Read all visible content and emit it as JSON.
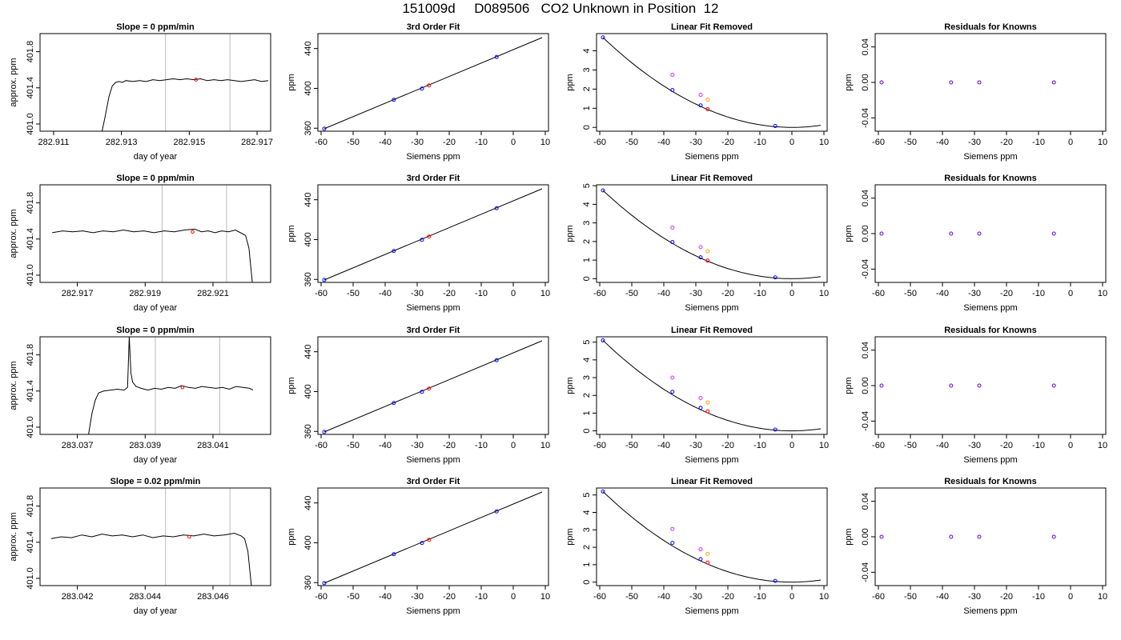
{
  "page": {
    "title": "151009d     D089506   CO2 Unknown in Position  12"
  },
  "chart_data": [
    {
      "type": "line",
      "title": "Slope =  0  ppm/min",
      "xlabel": "day of year",
      "ylabel": "approx. ppm",
      "xlim": [
        282.9106,
        282.9174
      ],
      "ylim": [
        400.92,
        402.0
      ],
      "xticks": [
        "282.911",
        "282.913",
        "282.915",
        "282.917"
      ],
      "yticks": [
        "401.0",
        "401.4",
        "401.8"
      ],
      "vlines": [
        282.9143,
        282.9162
      ],
      "x": [
        282.91243,
        282.91253,
        282.91263,
        282.91273,
        282.91283,
        282.91293,
        282.91303,
        282.91313,
        282.91333,
        282.91353,
        282.91373,
        282.91393,
        282.91413,
        282.91433,
        282.91453,
        282.91473,
        282.91493,
        282.91513,
        282.91533,
        282.91553,
        282.91573,
        282.91593,
        282.91613,
        282.91633,
        282.91653,
        282.91673,
        282.91693,
        282.91713,
        282.91733
      ],
      "y": [
        400.92,
        401.1,
        401.3,
        401.42,
        401.46,
        401.47,
        401.46,
        401.48,
        401.47,
        401.48,
        401.47,
        401.49,
        401.48,
        401.49,
        401.5,
        401.49,
        401.5,
        401.49,
        401.5,
        401.48,
        401.49,
        401.48,
        401.49,
        401.48,
        401.47,
        401.48,
        401.49,
        401.47,
        401.48
      ],
      "marker": {
        "x": 282.9152,
        "y": 401.49,
        "color": "#ff0000"
      }
    },
    {
      "type": "scatter",
      "title": "3rd Order Fit",
      "xlabel": "Siemens ppm",
      "ylabel": "ppm",
      "xlim": [
        -61,
        11
      ],
      "ylim": [
        357,
        455
      ],
      "xticks": [
        -60,
        -50,
        -40,
        -30,
        -20,
        -10,
        0,
        10
      ],
      "yticks": [
        360,
        400,
        440
      ],
      "fit_line": [
        [
          -59,
          359.5
        ],
        [
          9,
          451
        ]
      ],
      "points": [
        {
          "x": -59,
          "y": 359.5,
          "color": "#0000ff"
        },
        {
          "x": -37.3,
          "y": 388.5,
          "color": "#0000ff"
        },
        {
          "x": -28.5,
          "y": 399.8,
          "color": "#0000ff"
        },
        {
          "x": -26.3,
          "y": 403.0,
          "color": "#ff0000"
        },
        {
          "x": -5.2,
          "y": 431.5,
          "color": "#0000ff"
        }
      ]
    },
    {
      "type": "scatter",
      "title": "Linear Fit Removed",
      "xlabel": "Siemens ppm",
      "ylabel": "ppm",
      "xlim": [
        -61,
        11
      ],
      "ylim": [
        -0.2,
        4.9
      ],
      "xticks": [
        -60,
        -50,
        -40,
        -30,
        -20,
        -10,
        0,
        10
      ],
      "yticks": [
        0,
        1,
        2,
        3,
        4
      ],
      "curve_amplitude": 4.7,
      "points": [
        {
          "x": -59,
          "y": 4.7,
          "color": "#0000ff"
        },
        {
          "x": -37.3,
          "y": 1.95,
          "color": "#0000ff"
        },
        {
          "x": -28.5,
          "y": 1.15,
          "color": "#0000ff"
        },
        {
          "x": -26.3,
          "y": 0.95,
          "color": "#ff0000"
        },
        {
          "x": -5.2,
          "y": 0.07,
          "color": "#0000ff"
        },
        {
          "x": -37.3,
          "y": 2.75,
          "color": "#cc33ff"
        },
        {
          "x": -28.5,
          "y": 1.7,
          "color": "#cc33ff"
        },
        {
          "x": -26.3,
          "y": 1.45,
          "color": "#ffa500"
        }
      ]
    },
    {
      "type": "scatter",
      "title": "Residuals for Knowns",
      "xlabel": "Siemens ppm",
      "ylabel": "ppm",
      "xlim": [
        -61,
        11
      ],
      "ylim": [
        -0.055,
        0.055
      ],
      "xticks": [
        -60,
        -50,
        -40,
        -30,
        -20,
        -10,
        0,
        10
      ],
      "yticks": [
        "-0.04",
        "0.00",
        "0.04"
      ],
      "points": [
        {
          "x": -59,
          "y": 0,
          "color": "#6600cc"
        },
        {
          "x": -37.3,
          "y": 0,
          "color": "#6600cc"
        },
        {
          "x": -28.5,
          "y": 0,
          "color": "#6600cc"
        },
        {
          "x": -5.2,
          "y": 0,
          "color": "#6600cc"
        }
      ]
    },
    {
      "type": "line",
      "title": "Slope =  0  ppm/min",
      "xlabel": "day of year",
      "ylabel": "approx. ppm",
      "xlim": [
        282.9159,
        282.9227
      ],
      "ylim": [
        400.92,
        402.0
      ],
      "xticks": [
        "282.917",
        "282.919",
        "282.921"
      ],
      "yticks": [
        "401.0",
        "401.4",
        "401.8"
      ],
      "vlines": [
        282.9195,
        282.9214
      ],
      "x": [
        282.91626,
        282.91656,
        282.91686,
        282.91716,
        282.91746,
        282.91776,
        282.91806,
        282.91836,
        282.91866,
        282.91896,
        282.91926,
        282.91956,
        282.91986,
        282.92016,
        282.92046,
        282.92066,
        282.92086,
        282.92106,
        282.92126,
        282.92146,
        282.92166,
        282.92186,
        282.92196,
        282.92206,
        282.92216
      ],
      "y": [
        401.47,
        401.49,
        401.48,
        401.49,
        401.47,
        401.49,
        401.48,
        401.5,
        401.48,
        401.49,
        401.47,
        401.49,
        401.48,
        401.5,
        401.51,
        401.48,
        401.49,
        401.47,
        401.49,
        401.48,
        401.5,
        401.46,
        401.44,
        401.3,
        400.92
      ],
      "marker": {
        "x": 282.9204,
        "y": 401.48,
        "color": "#ff0000"
      }
    },
    {
      "type": "scatter",
      "title": "3rd Order Fit",
      "xlabel": "Siemens ppm",
      "ylabel": "ppm",
      "xlim": [
        -61,
        11
      ],
      "ylim": [
        357,
        455
      ],
      "xticks": [
        -60,
        -50,
        -40,
        -30,
        -20,
        -10,
        0,
        10
      ],
      "yticks": [
        360,
        400,
        440
      ],
      "fit_line": [
        [
          -59,
          359.5
        ],
        [
          9,
          451
        ]
      ],
      "points": [
        {
          "x": -59,
          "y": 359.5,
          "color": "#0000ff"
        },
        {
          "x": -37.3,
          "y": 388.5,
          "color": "#0000ff"
        },
        {
          "x": -28.5,
          "y": 399.8,
          "color": "#0000ff"
        },
        {
          "x": -26.3,
          "y": 403.0,
          "color": "#ff0000"
        },
        {
          "x": -5.2,
          "y": 431.5,
          "color": "#0000ff"
        }
      ]
    },
    {
      "type": "scatter",
      "title": "Linear Fit Removed",
      "xlabel": "Siemens ppm",
      "ylabel": "ppm",
      "xlim": [
        -61,
        11
      ],
      "ylim": [
        -0.2,
        5.05
      ],
      "xticks": [
        -60,
        -50,
        -40,
        -30,
        -20,
        -10,
        0,
        10
      ],
      "yticks": [
        0,
        1,
        2,
        3,
        4,
        5
      ],
      "curve_amplitude": 4.75,
      "points": [
        {
          "x": -59,
          "y": 4.75,
          "color": "#0000ff"
        },
        {
          "x": -37.3,
          "y": 1.97,
          "color": "#0000ff"
        },
        {
          "x": -28.5,
          "y": 1.15,
          "color": "#0000ff"
        },
        {
          "x": -26.3,
          "y": 0.97,
          "color": "#ff0000"
        },
        {
          "x": -5.2,
          "y": 0.07,
          "color": "#0000ff"
        },
        {
          "x": -37.3,
          "y": 2.75,
          "color": "#cc33ff"
        },
        {
          "x": -28.5,
          "y": 1.7,
          "color": "#cc33ff"
        },
        {
          "x": -26.3,
          "y": 1.48,
          "color": "#ffa500"
        }
      ]
    },
    {
      "type": "scatter",
      "title": "Residuals for Knowns",
      "xlabel": "Siemens ppm",
      "ylabel": "ppm",
      "xlim": [
        -61,
        11
      ],
      "ylim": [
        -0.055,
        0.055
      ],
      "xticks": [
        -60,
        -50,
        -40,
        -30,
        -20,
        -10,
        0,
        10
      ],
      "yticks": [
        "-0.04",
        "0.00",
        "0.04"
      ],
      "points": [
        {
          "x": -59,
          "y": 0,
          "color": "#6600cc"
        },
        {
          "x": -37.3,
          "y": 0,
          "color": "#6600cc"
        },
        {
          "x": -28.5,
          "y": 0,
          "color": "#6600cc"
        },
        {
          "x": -5.2,
          "y": 0,
          "color": "#6600cc"
        }
      ]
    },
    {
      "type": "line",
      "title": "Slope =  0  ppm/min",
      "xlabel": "day of year",
      "ylabel": "approx. ppm",
      "xlim": [
        283.0359,
        283.0427
      ],
      "ylim": [
        400.92,
        402.0
      ],
      "xticks": [
        "283.037",
        "283.039",
        "283.041"
      ],
      "yticks": [
        "401.0",
        "401.4",
        "401.8"
      ],
      "vlines": [
        283.0393,
        283.0412
      ],
      "x": [
        283.03733,
        283.03743,
        283.03753,
        283.03763,
        283.03778,
        283.03798,
        283.03818,
        283.03838,
        283.03848,
        283.03853,
        283.03858,
        283.03863,
        283.03873,
        283.03888,
        283.03908,
        283.03928,
        283.03948,
        283.03968,
        283.03988,
        283.04008,
        283.04028,
        283.04048,
        283.04068,
        283.04088,
        283.04108,
        283.04128,
        283.04148,
        283.04168,
        283.04188,
        283.04208,
        283.04218
      ],
      "y": [
        400.92,
        401.15,
        401.3,
        401.38,
        401.4,
        401.41,
        401.42,
        401.41,
        401.44,
        402.0,
        401.6,
        401.5,
        401.45,
        401.43,
        401.41,
        401.43,
        401.42,
        401.44,
        401.43,
        401.46,
        401.44,
        401.43,
        401.45,
        401.44,
        401.43,
        401.44,
        401.42,
        401.45,
        401.44,
        401.43,
        401.41
      ],
      "marker": {
        "x": 283.0401,
        "y": 401.44,
        "color": "#ff0000"
      }
    },
    {
      "type": "scatter",
      "title": "3rd Order Fit",
      "xlabel": "Siemens ppm",
      "ylabel": "ppm",
      "xlim": [
        -61,
        11
      ],
      "ylim": [
        357,
        455
      ],
      "xticks": [
        -60,
        -50,
        -40,
        -30,
        -20,
        -10,
        0,
        10
      ],
      "yticks": [
        360,
        400,
        440
      ],
      "fit_line": [
        [
          -59,
          359.5
        ],
        [
          9,
          451
        ]
      ],
      "points": [
        {
          "x": -59,
          "y": 359.5,
          "color": "#0000ff"
        },
        {
          "x": -37.3,
          "y": 388.5,
          "color": "#0000ff"
        },
        {
          "x": -28.5,
          "y": 399.8,
          "color": "#0000ff"
        },
        {
          "x": -26.3,
          "y": 403.0,
          "color": "#ff0000"
        },
        {
          "x": -5.2,
          "y": 431.5,
          "color": "#0000ff"
        }
      ]
    },
    {
      "type": "scatter",
      "title": "Linear Fit Removed",
      "xlabel": "Siemens ppm",
      "ylabel": "ppm",
      "xlim": [
        -61,
        11
      ],
      "ylim": [
        -0.2,
        5.3
      ],
      "xticks": [
        -60,
        -50,
        -40,
        -30,
        -20,
        -10,
        0,
        10
      ],
      "yticks": [
        0,
        1,
        2,
        3,
        4,
        5
      ],
      "curve_amplitude": 5.1,
      "points": [
        {
          "x": -59,
          "y": 5.1,
          "color": "#0000ff"
        },
        {
          "x": -37.3,
          "y": 2.2,
          "color": "#0000ff"
        },
        {
          "x": -28.5,
          "y": 1.3,
          "color": "#0000ff"
        },
        {
          "x": -26.3,
          "y": 1.1,
          "color": "#ff0000"
        },
        {
          "x": -5.2,
          "y": 0.07,
          "color": "#0000ff"
        },
        {
          "x": -37.3,
          "y": 3.0,
          "color": "#cc33ff"
        },
        {
          "x": -28.5,
          "y": 1.85,
          "color": "#cc33ff"
        },
        {
          "x": -26.3,
          "y": 1.6,
          "color": "#ffa500"
        }
      ]
    },
    {
      "type": "scatter",
      "title": "Residuals for Knowns",
      "xlabel": "Siemens ppm",
      "ylabel": "ppm",
      "xlim": [
        -61,
        11
      ],
      "ylim": [
        -0.055,
        0.055
      ],
      "xticks": [
        -60,
        -50,
        -40,
        -30,
        -20,
        -10,
        0,
        10
      ],
      "yticks": [
        "-0.04",
        "0.00",
        "0.04"
      ],
      "points": [
        {
          "x": -59,
          "y": 0,
          "color": "#6600cc"
        },
        {
          "x": -37.3,
          "y": 0,
          "color": "#6600cc"
        },
        {
          "x": -28.5,
          "y": 0,
          "color": "#6600cc"
        },
        {
          "x": -5.2,
          "y": 0,
          "color": "#6600cc"
        }
      ]
    },
    {
      "type": "line",
      "title": "Slope =  0.02  ppm/min",
      "xlabel": "day of year",
      "ylabel": "approx. ppm",
      "xlim": [
        283.0409,
        283.0477
      ],
      "ylim": [
        400.92,
        402.0
      ],
      "xticks": [
        "283.042",
        "283.044",
        "283.046"
      ],
      "yticks": [
        "401.0",
        "401.4",
        "401.8"
      ],
      "vlines": [
        283.0446,
        283.0465
      ],
      "x": [
        283.04123,
        283.04153,
        283.04183,
        283.04213,
        283.04243,
        283.04273,
        283.04303,
        283.04333,
        283.04363,
        283.04393,
        283.04423,
        283.04453,
        283.04483,
        283.04513,
        283.04543,
        283.04573,
        283.04603,
        283.04633,
        283.04663,
        283.04683,
        283.04693,
        283.04703,
        283.04713
      ],
      "y": [
        401.44,
        401.46,
        401.45,
        401.48,
        401.46,
        401.49,
        401.47,
        401.48,
        401.46,
        401.48,
        401.45,
        401.47,
        401.46,
        401.48,
        401.47,
        401.49,
        401.47,
        401.48,
        401.5,
        401.47,
        401.44,
        401.3,
        400.92
      ],
      "marker": {
        "x": 283.0453,
        "y": 401.46,
        "color": "#ff0000"
      }
    },
    {
      "type": "scatter",
      "title": "3rd Order Fit",
      "xlabel": "Siemens ppm",
      "ylabel": "ppm",
      "xlim": [
        -61,
        11
      ],
      "ylim": [
        357,
        455
      ],
      "xticks": [
        -60,
        -50,
        -40,
        -30,
        -20,
        -10,
        0,
        10
      ],
      "yticks": [
        360,
        400,
        440
      ],
      "fit_line": [
        [
          -59,
          359.5
        ],
        [
          9,
          451
        ]
      ],
      "points": [
        {
          "x": -59,
          "y": 359.5,
          "color": "#0000ff"
        },
        {
          "x": -37.3,
          "y": 388.5,
          "color": "#0000ff"
        },
        {
          "x": -28.5,
          "y": 399.8,
          "color": "#0000ff"
        },
        {
          "x": -26.3,
          "y": 403.0,
          "color": "#ff0000"
        },
        {
          "x": -5.2,
          "y": 431.5,
          "color": "#0000ff"
        }
      ]
    },
    {
      "type": "scatter",
      "title": "Linear Fit Removed",
      "xlabel": "Siemens ppm",
      "ylabel": "ppm",
      "xlim": [
        -61,
        11
      ],
      "ylim": [
        -0.2,
        5.4
      ],
      "xticks": [
        -60,
        -50,
        -40,
        -30,
        -20,
        -10,
        0,
        10
      ],
      "yticks": [
        0,
        1,
        2,
        3,
        4,
        5
      ],
      "curve_amplitude": 5.2,
      "points": [
        {
          "x": -59,
          "y": 5.2,
          "color": "#0000ff"
        },
        {
          "x": -37.3,
          "y": 2.25,
          "color": "#0000ff"
        },
        {
          "x": -28.5,
          "y": 1.32,
          "color": "#0000ff"
        },
        {
          "x": -26.3,
          "y": 1.12,
          "color": "#ff0000"
        },
        {
          "x": -5.2,
          "y": 0.07,
          "color": "#0000ff"
        },
        {
          "x": -37.3,
          "y": 3.05,
          "color": "#cc33ff"
        },
        {
          "x": -28.5,
          "y": 1.88,
          "color": "#cc33ff"
        },
        {
          "x": -26.3,
          "y": 1.62,
          "color": "#ffa500"
        }
      ]
    },
    {
      "type": "scatter",
      "title": "Residuals for Knowns",
      "xlabel": "Siemens ppm",
      "ylabel": "ppm",
      "xlim": [
        -61,
        11
      ],
      "ylim": [
        -0.055,
        0.055
      ],
      "xticks": [
        -60,
        -50,
        -40,
        -30,
        -20,
        -10,
        0,
        10
      ],
      "yticks": [
        "-0.04",
        "0.00",
        "0.04"
      ],
      "points": [
        {
          "x": -59,
          "y": 0,
          "color": "#6600cc"
        },
        {
          "x": -37.3,
          "y": 0,
          "color": "#6600cc"
        },
        {
          "x": -28.5,
          "y": 0,
          "color": "#6600cc"
        },
        {
          "x": -5.2,
          "y": 0,
          "color": "#6600cc"
        }
      ]
    }
  ]
}
